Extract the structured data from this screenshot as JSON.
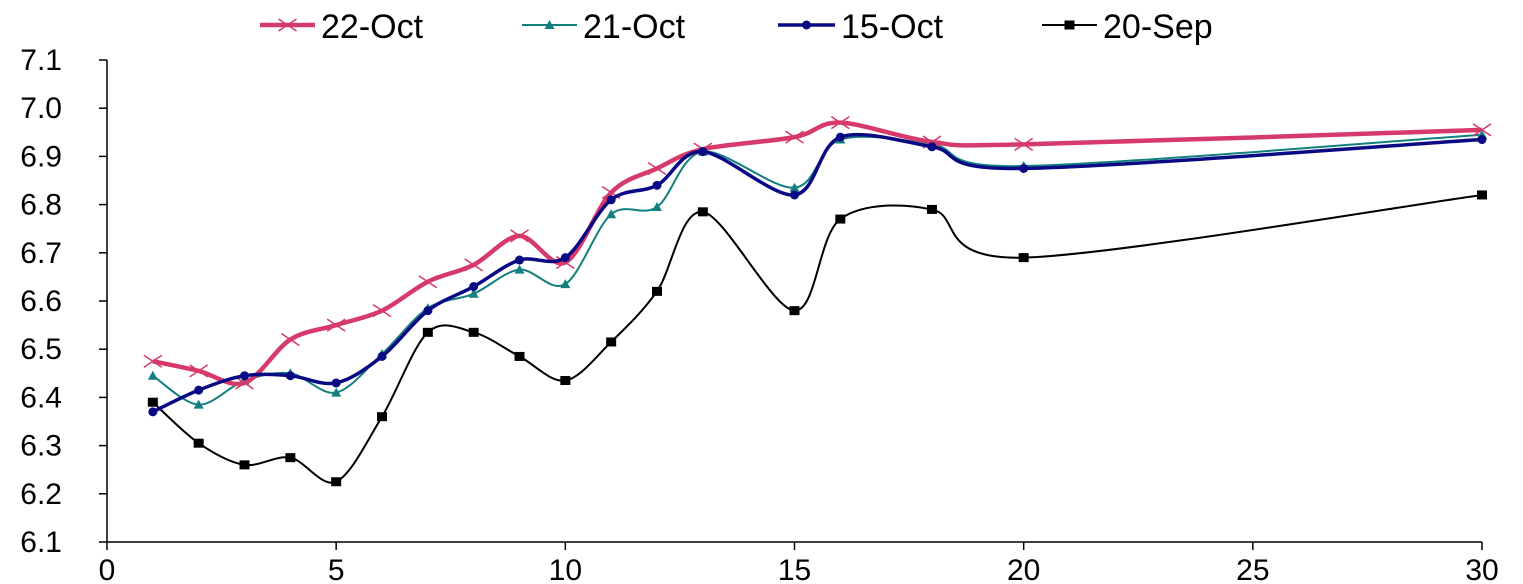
{
  "chart_data": {
    "type": "line",
    "title": "",
    "xlabel": "",
    "ylabel": "",
    "xlim": [
      0,
      30
    ],
    "ylim": [
      6.1,
      7.1
    ],
    "x_ticks": [
      0,
      5,
      10,
      15,
      20,
      25,
      30
    ],
    "x_tick_labels": [
      "0",
      "5",
      "10",
      "15",
      "20",
      "25",
      "30"
    ],
    "y_ticks": [
      6.1,
      6.2,
      6.3,
      6.4,
      6.5,
      6.6,
      6.7,
      6.8,
      6.9,
      7.0,
      7.1
    ],
    "y_tick_labels": [
      "6.1",
      "6.2",
      "6.3",
      "6.4",
      "6.5",
      "6.6",
      "6.7",
      "6.8",
      "6.9",
      "7.0",
      "7.1"
    ],
    "grid": false,
    "legend_position": "top",
    "series": [
      {
        "name": "22-Oct",
        "color": "#d63a6a",
        "marker": "x",
        "points": [
          [
            1,
            6.475
          ],
          [
            2,
            6.455
          ],
          [
            3,
            6.43
          ],
          [
            4,
            6.52
          ],
          [
            5,
            6.55
          ],
          [
            6,
            6.58
          ],
          [
            7,
            6.64
          ],
          [
            8,
            6.675
          ],
          [
            9,
            6.735
          ],
          [
            10,
            6.68
          ],
          [
            11,
            6.825
          ],
          [
            12,
            6.875
          ],
          [
            13,
            6.915
          ],
          [
            15,
            6.94
          ],
          [
            16,
            6.97
          ],
          [
            18,
            6.93
          ],
          [
            20,
            6.925
          ],
          [
            30,
            6.955
          ]
        ]
      },
      {
        "name": "21-Oct",
        "color": "#138080",
        "marker": "triangle",
        "points": [
          [
            1,
            6.445
          ],
          [
            2,
            6.385
          ],
          [
            3,
            6.435
          ],
          [
            4,
            6.45
          ],
          [
            5,
            6.41
          ],
          [
            6,
            6.49
          ],
          [
            7,
            6.585
          ],
          [
            8,
            6.615
          ],
          [
            9,
            6.665
          ],
          [
            10,
            6.635
          ],
          [
            11,
            6.78
          ],
          [
            12,
            6.795
          ],
          [
            13,
            6.91
          ],
          [
            15,
            6.835
          ],
          [
            16,
            6.935
          ],
          [
            18,
            6.925
          ],
          [
            20,
            6.88
          ],
          [
            30,
            6.945
          ]
        ]
      },
      {
        "name": "15-Oct",
        "color": "#0a0a85",
        "marker": "circle",
        "points": [
          [
            1,
            6.37
          ],
          [
            2,
            6.415
          ],
          [
            3,
            6.445
          ],
          [
            4,
            6.445
          ],
          [
            5,
            6.43
          ],
          [
            6,
            6.485
          ],
          [
            7,
            6.58
          ],
          [
            8,
            6.63
          ],
          [
            9,
            6.685
          ],
          [
            10,
            6.69
          ],
          [
            11,
            6.81
          ],
          [
            12,
            6.84
          ],
          [
            13,
            6.91
          ],
          [
            15,
            6.82
          ],
          [
            16,
            6.94
          ],
          [
            18,
            6.92
          ],
          [
            20,
            6.875
          ],
          [
            30,
            6.935
          ]
        ]
      },
      {
        "name": "20-Sep",
        "color": "#000000",
        "marker": "square",
        "points": [
          [
            1,
            6.39
          ],
          [
            2,
            6.305
          ],
          [
            3,
            6.26
          ],
          [
            4,
            6.275
          ],
          [
            5,
            6.225
          ],
          [
            6,
            6.36
          ],
          [
            7,
            6.535
          ],
          [
            8,
            6.535
          ],
          [
            9,
            6.485
          ],
          [
            10,
            6.435
          ],
          [
            11,
            6.515
          ],
          [
            12,
            6.62
          ],
          [
            13,
            6.785
          ],
          [
            15,
            6.58
          ],
          [
            16,
            6.77
          ],
          [
            18,
            6.79
          ],
          [
            20,
            6.69
          ],
          [
            30,
            6.82
          ]
        ]
      }
    ]
  }
}
